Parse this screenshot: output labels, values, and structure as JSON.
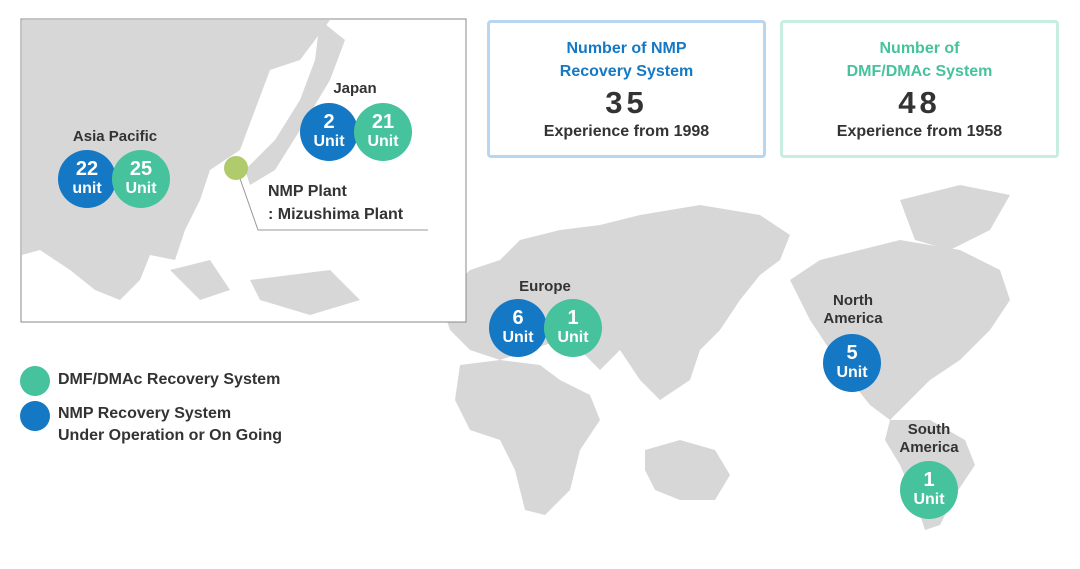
{
  "colors": {
    "nmp": "#1478c4",
    "dmf": "#46c29c",
    "plant": "#afcb6c",
    "land": "#d7d7d7"
  },
  "stats": [
    {
      "title": "Number of NMP\nRecovery System",
      "value": "35",
      "subtitle": "Experience from 1998"
    },
    {
      "title": "Number of\nDMF/DMAc System",
      "value": "48",
      "subtitle": "Experience from 1958"
    }
  ],
  "inset": {
    "plant_label": "NMP Plant\n: Mizushima Plant",
    "regions": [
      {
        "name": "Japan",
        "nmp": {
          "value": "2",
          "unit": "Unit"
        },
        "dmf": {
          "value": "21",
          "unit": "Unit"
        }
      },
      {
        "name": "Asia Pacific",
        "nmp": {
          "value": "22",
          "unit": "unit"
        },
        "dmf": {
          "value": "25",
          "unit": "Unit"
        }
      }
    ]
  },
  "regions": [
    {
      "name": "Europe",
      "nmp": {
        "value": "6",
        "unit": "Unit"
      },
      "dmf": {
        "value": "1",
        "unit": "Unit"
      }
    },
    {
      "name": "North\nAmerica",
      "nmp": {
        "value": "5",
        "unit": "Unit"
      }
    },
    {
      "name": "South\nAmerica",
      "dmf": {
        "value": "1",
        "unit": "Unit"
      }
    }
  ],
  "legend": [
    {
      "label": "DMF/DMAc Recovery System",
      "type": "dmf"
    },
    {
      "label": "NMP Recovery System\nUnder Operation or On Going",
      "type": "nmp"
    }
  ]
}
